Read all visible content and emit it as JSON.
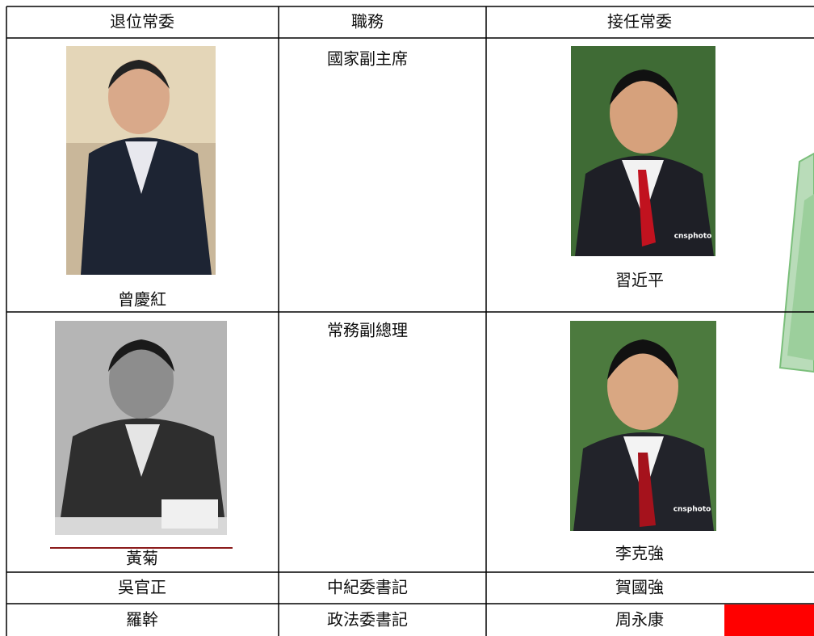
{
  "table": {
    "header": [
      "退位常委",
      "職務",
      "接任常委"
    ],
    "rows": [
      [
        "曾慶紅",
        "國家副主席",
        "習近平"
      ],
      [
        "黃菊",
        "常務副總理",
        "李克強"
      ],
      [
        "吳官正",
        "中紀委書記",
        "賀國強"
      ],
      [
        "羅幹",
        "政法委書記",
        "周永康"
      ]
    ]
  },
  "photos": {
    "watermark": "cnsphoto"
  }
}
